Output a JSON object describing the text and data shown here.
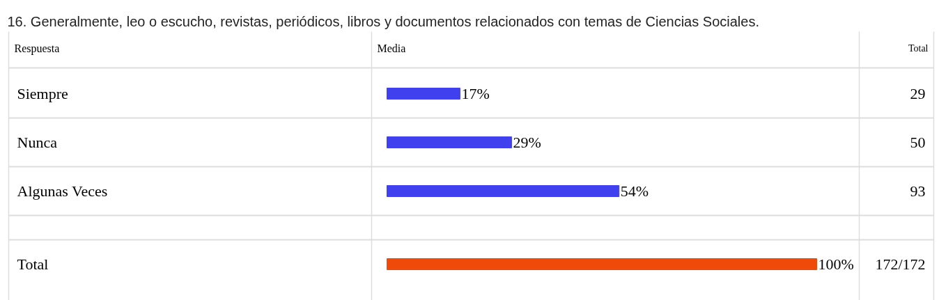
{
  "chart_data": {
    "type": "bar",
    "orientation": "horizontal",
    "title": "16. Generalmente, leo o escucho, revistas, periódicos, libros y documentos relacionados con temas de Ciencias Sociales.",
    "ylabel": "Respuesta",
    "xlabel": "Media",
    "categories": [
      "Siempre",
      "Nunca",
      "Algunas Veces",
      "Total"
    ],
    "values": [
      17,
      29,
      54,
      100
    ],
    "colors": [
      "#4040ee",
      "#4040ee",
      "#4040ee",
      "#f04a0a"
    ],
    "value_labels": [
      "17%",
      "29%",
      "54%",
      "100%"
    ],
    "annotations": [
      "Total",
      "29",
      "50",
      "93",
      "172/172"
    ]
  }
}
